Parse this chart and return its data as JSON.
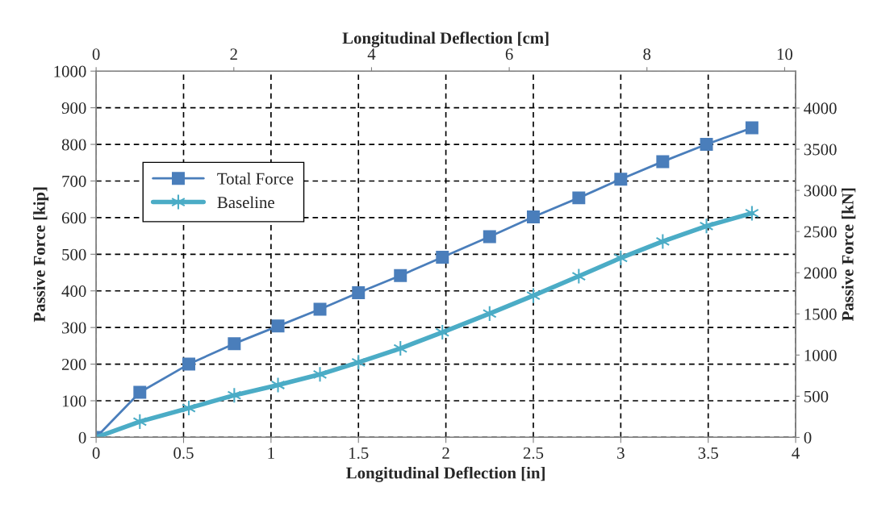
{
  "chart_data": {
    "type": "line",
    "xlabel": "Longitudinal Deflection [in]",
    "ylabel": "Passive Force [kip]",
    "y2label": "Passive Force [kN]",
    "x2label": "Longitudinal Deflection [cm]",
    "xlim": [
      0,
      4
    ],
    "xticks": [
      0,
      0.5,
      1,
      1.5,
      2,
      2.5,
      3,
      3.5,
      4
    ],
    "ylim": [
      0,
      1000
    ],
    "yticks": [
      0,
      100,
      200,
      300,
      400,
      500,
      600,
      700,
      800,
      900,
      1000
    ],
    "y2lim": [
      0,
      4448
    ],
    "y2ticks": [
      0,
      500,
      1000,
      1500,
      2000,
      2500,
      3000,
      3500,
      4000
    ],
    "x2lim": [
      0,
      10.16
    ],
    "x2ticks": [
      0,
      2,
      4,
      6,
      8,
      10
    ],
    "grid": true,
    "legend": "left",
    "series": [
      {
        "name": "Total Force",
        "color": "#4a7ebb",
        "marker": "square",
        "x": [
          0,
          0.25,
          0.53,
          0.79,
          1.04,
          1.28,
          1.5,
          1.74,
          1.98,
          2.25,
          2.5,
          2.76,
          3.0,
          3.24,
          3.49,
          3.75
        ],
        "values": [
          0,
          123,
          200,
          256,
          304,
          350,
          395,
          442,
          492,
          548,
          602,
          654,
          705,
          753,
          800,
          845
        ]
      },
      {
        "name": "Baseline",
        "color": "#4bacc6",
        "marker": "cross",
        "x": [
          0,
          0.25,
          0.53,
          0.79,
          1.04,
          1.28,
          1.5,
          1.74,
          1.98,
          2.25,
          2.5,
          2.76,
          3.0,
          3.24,
          3.49,
          3.75
        ],
        "values": [
          0,
          43,
          80,
          115,
          143,
          172,
          205,
          243,
          287,
          338,
          387,
          440,
          490,
          535,
          577,
          612
        ]
      }
    ]
  }
}
